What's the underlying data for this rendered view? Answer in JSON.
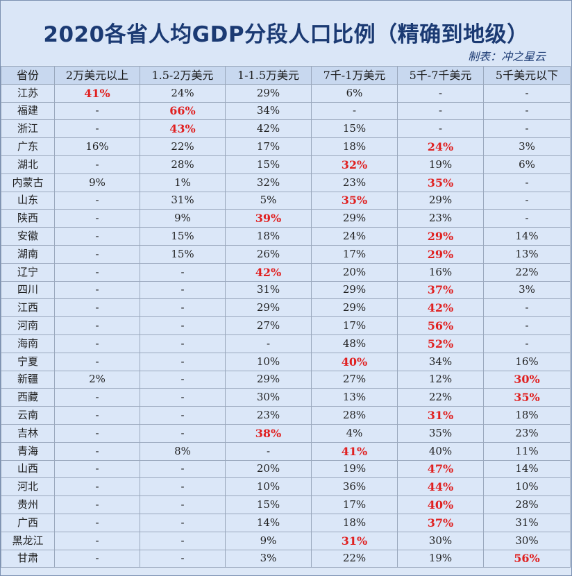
{
  "title": "2020各省人均GDP分段人口比例（精确到地级）",
  "credit": "制表：冲之星云",
  "colors": {
    "highlight": "#e02020",
    "title": "#1b3a73",
    "header_bg": "#c8d8ef",
    "cell_bg": "#dbe7f8"
  },
  "headers": [
    "省份",
    "2万美元以上",
    "1.5-2万美元",
    "1-1.5万美元",
    "7千-1万美元",
    "5千-7千美元",
    "5千美元以下"
  ],
  "rows": [
    {
      "cells": [
        "江苏",
        "41%",
        "24%",
        "29%",
        "6%",
        "-",
        "-"
      ],
      "hl": 1
    },
    {
      "cells": [
        "福建",
        "-",
        "66%",
        "34%",
        "-",
        "-",
        "-"
      ],
      "hl": 2
    },
    {
      "cells": [
        "浙江",
        "-",
        "43%",
        "42%",
        "15%",
        "-",
        "-"
      ],
      "hl": 2
    },
    {
      "cells": [
        "广东",
        "16%",
        "22%",
        "17%",
        "18%",
        "24%",
        "3%"
      ],
      "hl": 5
    },
    {
      "cells": [
        "湖北",
        "-",
        "28%",
        "15%",
        "32%",
        "19%",
        "6%"
      ],
      "hl": 4
    },
    {
      "cells": [
        "内蒙古",
        "9%",
        "1%",
        "32%",
        "23%",
        "35%",
        "-"
      ],
      "hl": 5
    },
    {
      "cells": [
        "山东",
        "-",
        "31%",
        "5%",
        "35%",
        "29%",
        "-"
      ],
      "hl": 4
    },
    {
      "cells": [
        "陕西",
        "-",
        "9%",
        "39%",
        "29%",
        "23%",
        "-"
      ],
      "hl": 3
    },
    {
      "cells": [
        "安徽",
        "-",
        "15%",
        "18%",
        "24%",
        "29%",
        "14%"
      ],
      "hl": 5
    },
    {
      "cells": [
        "湖南",
        "-",
        "15%",
        "26%",
        "17%",
        "29%",
        "13%"
      ],
      "hl": 5
    },
    {
      "cells": [
        "辽宁",
        "-",
        "-",
        "42%",
        "20%",
        "16%",
        "22%"
      ],
      "hl": 3
    },
    {
      "cells": [
        "四川",
        "-",
        "-",
        "31%",
        "29%",
        "37%",
        "3%"
      ],
      "hl": 5
    },
    {
      "cells": [
        "江西",
        "-",
        "-",
        "29%",
        "29%",
        "42%",
        "-"
      ],
      "hl": 5
    },
    {
      "cells": [
        "河南",
        "-",
        "-",
        "27%",
        "17%",
        "56%",
        "-"
      ],
      "hl": 5
    },
    {
      "cells": [
        "海南",
        "-",
        "-",
        "-",
        "48%",
        "52%",
        "-"
      ],
      "hl": 5
    },
    {
      "cells": [
        "宁夏",
        "-",
        "-",
        "10%",
        "40%",
        "34%",
        "16%"
      ],
      "hl": 4
    },
    {
      "cells": [
        "新疆",
        "2%",
        "-",
        "29%",
        "27%",
        "12%",
        "30%"
      ],
      "hl": 6
    },
    {
      "cells": [
        "西藏",
        "-",
        "-",
        "30%",
        "13%",
        "22%",
        "35%"
      ],
      "hl": 6
    },
    {
      "cells": [
        "云南",
        "-",
        "-",
        "23%",
        "28%",
        "31%",
        "18%"
      ],
      "hl": 5
    },
    {
      "cells": [
        "吉林",
        "-",
        "-",
        "38%",
        "4%",
        "35%",
        "23%"
      ],
      "hl": 3
    },
    {
      "cells": [
        "青海",
        "-",
        "8%",
        "-",
        "41%",
        "40%",
        "11%"
      ],
      "hl": 4
    },
    {
      "cells": [
        "山西",
        "-",
        "-",
        "20%",
        "19%",
        "47%",
        "14%"
      ],
      "hl": 5
    },
    {
      "cells": [
        "河北",
        "-",
        "-",
        "10%",
        "36%",
        "44%",
        "10%"
      ],
      "hl": 5
    },
    {
      "cells": [
        "贵州",
        "-",
        "-",
        "15%",
        "17%",
        "40%",
        "28%"
      ],
      "hl": 5
    },
    {
      "cells": [
        "广西",
        "-",
        "-",
        "14%",
        "18%",
        "37%",
        "31%"
      ],
      "hl": 5
    },
    {
      "cells": [
        "黑龙江",
        "-",
        "-",
        "9%",
        "31%",
        "30%",
        "30%"
      ],
      "hl": 4
    },
    {
      "cells": [
        "甘肃",
        "-",
        "-",
        "3%",
        "22%",
        "19%",
        "56%"
      ],
      "hl": 6
    }
  ]
}
